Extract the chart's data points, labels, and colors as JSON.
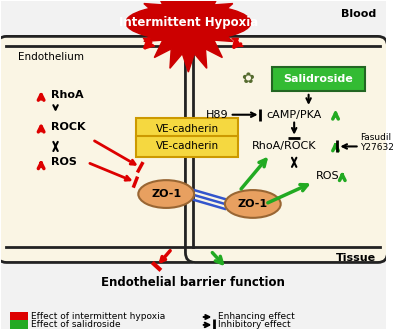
{
  "bg_color": "#ffffff",
  "outer_bg": "#f0f0f0",
  "cell_bg": "#faf5e4",
  "cell_border": "#222222",
  "blood_label": "Blood",
  "tissue_label": "Tissue",
  "endothelium_label": "Endothelium",
  "salidroside_label": "Salidroside",
  "salidroside_bg": "#33bb33",
  "salidroside_border": "#226622",
  "ve_cadherin_bg": "#f5d840",
  "ve_cadherin_border": "#cc9900",
  "hypoxia_text": "Intermittent Hypoxia",
  "hypoxia_bg": "#cc0000",
  "zo1_bg": "#e8a060",
  "zo1_border": "#996633",
  "red": "#dd0000",
  "green": "#22aa22",
  "black": "#111111",
  "blue": "#3355cc",
  "legend_red_text": "Effect of intermittent hypoxia",
  "legend_green_text": "Effect of salidroside",
  "legend_enhance_text": "Enhancing effect",
  "legend_inhibit_text": "Inhibitory effect",
  "barrier_text": "Endothelial barrier function"
}
